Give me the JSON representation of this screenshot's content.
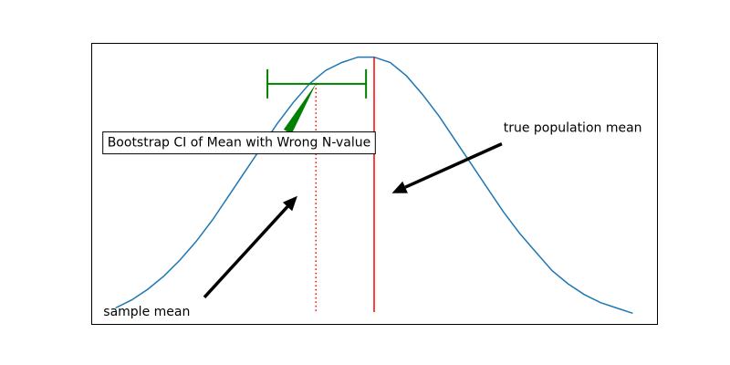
{
  "chart_data": {
    "type": "line",
    "title": "",
    "xlabel": "",
    "ylabel": "",
    "grid": false,
    "legend": "none",
    "axes_visible": false,
    "xlim": [
      -3.5,
      3.5
    ],
    "ylim": [
      0,
      1.05
    ],
    "series": [
      {
        "color": "#1f77b4",
        "points": [
          [
            -3.2,
            0.06
          ],
          [
            -3.0,
            0.09
          ],
          [
            -2.8,
            0.13
          ],
          [
            -2.6,
            0.18
          ],
          [
            -2.4,
            0.24
          ],
          [
            -2.2,
            0.31
          ],
          [
            -2.0,
            0.39
          ],
          [
            -1.8,
            0.48
          ],
          [
            -1.6,
            0.57
          ],
          [
            -1.4,
            0.66
          ],
          [
            -1.2,
            0.75
          ],
          [
            -1.0,
            0.83
          ],
          [
            -0.8,
            0.9
          ],
          [
            -0.6,
            0.95
          ],
          [
            -0.4,
            0.98
          ],
          [
            -0.2,
            1.0
          ],
          [
            0.0,
            1.0
          ],
          [
            0.2,
            0.98
          ],
          [
            0.4,
            0.93
          ],
          [
            0.6,
            0.86
          ],
          [
            0.8,
            0.78
          ],
          [
            1.0,
            0.69
          ],
          [
            1.2,
            0.6
          ],
          [
            1.4,
            0.51
          ],
          [
            1.6,
            0.42
          ],
          [
            1.8,
            0.34
          ],
          [
            2.0,
            0.27
          ],
          [
            2.2,
            0.2
          ],
          [
            2.4,
            0.15
          ],
          [
            2.6,
            0.11
          ],
          [
            2.8,
            0.08
          ],
          [
            3.0,
            0.06
          ],
          [
            3.2,
            0.04
          ]
        ]
      }
    ],
    "true_mean": {
      "x": 0.0,
      "color": "#ff0000",
      "linestyle": "solid"
    },
    "sample_mean": {
      "x": -0.72,
      "color": "#ff0000",
      "linestyle": "dotted"
    },
    "confidence_interval": {
      "low": -1.32,
      "high": -0.1,
      "y": 0.9,
      "color": "#008000"
    },
    "annotations": [
      {
        "id": "ci-label",
        "text": "Bootstrap CI of Mean with Wrong N-value",
        "boxed": true,
        "text_x": -3.3,
        "text_y": 0.665,
        "arrow_tip_x": -0.72,
        "arrow_tip_y": 0.9,
        "arrow_base_x": -1.07,
        "arrow_base_y": 0.72,
        "arrow_style": "wedge",
        "arrow_color": "#008000"
      },
      {
        "id": "true-mean-label",
        "text": "true population mean",
        "boxed": false,
        "text_x": 1.6,
        "text_y": 0.72,
        "arrow_tip_x": 0.22,
        "arrow_tip_y": 0.49,
        "arrow_base_x": 1.58,
        "arrow_base_y": 0.675,
        "arrow_style": "simple",
        "arrow_color": "#000000"
      },
      {
        "id": "sample-mean-label",
        "text": "sample mean",
        "boxed": false,
        "text_x": -3.35,
        "text_y": 0.03,
        "arrow_tip_x": -0.95,
        "arrow_tip_y": 0.48,
        "arrow_base_x": -2.1,
        "arrow_base_y": 0.1,
        "arrow_style": "simple",
        "arrow_color": "#000000"
      }
    ]
  }
}
